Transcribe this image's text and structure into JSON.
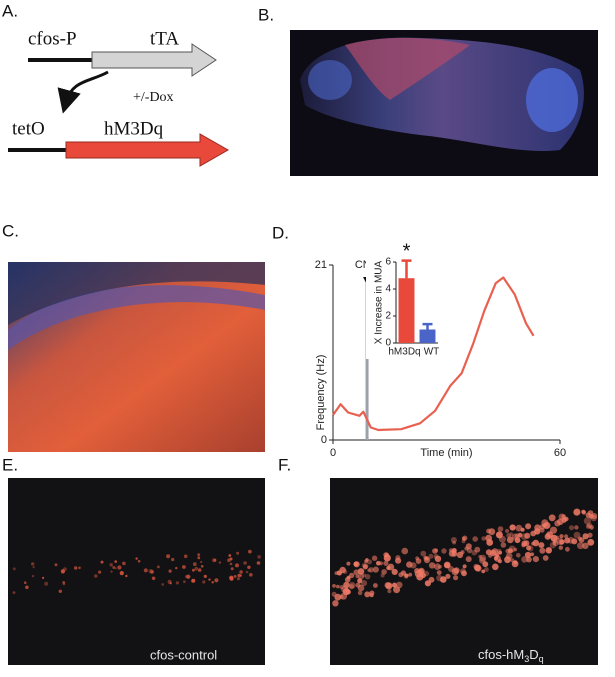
{
  "panel_labels": [
    "A.",
    "B.",
    "C.",
    "D.",
    "E.",
    "F."
  ],
  "diagram": {
    "promoter_1": "cfos-P",
    "gene_1": "tTA",
    "regulation": "+/-Dox",
    "promoter_2": "tetO",
    "gene_2": "hM3Dq"
  },
  "images": {
    "E_caption": "cfos-control",
    "F_caption": [
      "cfos-hM",
      "3",
      "D",
      "q"
    ]
  },
  "chart_data": [
    {
      "type": "line",
      "xlabel": "Time (min)",
      "ylabel": "Frequency (Hz)",
      "x": [
        0,
        2,
        4,
        7,
        8,
        10,
        12,
        18,
        23,
        27,
        31,
        34,
        37,
        40,
        43,
        45,
        48,
        51,
        53
      ],
      "series": [
        {
          "color": "#e8604f",
          "values": [
            3.0,
            4.3,
            3.3,
            2.9,
            3.4,
            1.5,
            1.2,
            1.3,
            2.0,
            3.5,
            6.5,
            8.0,
            11.5,
            15.5,
            18.8,
            19.5,
            17.5,
            14.0,
            12.5
          ]
        }
      ],
      "xlim": [
        0,
        60
      ],
      "xticks": [
        0,
        60
      ],
      "ylim": [
        0,
        21
      ],
      "yticks": [
        0,
        21
      ],
      "annotation": {
        "text": "CNO",
        "x": 9
      }
    },
    {
      "type": "bar",
      "ylabel": "X Increase in MUA",
      "categories": [
        "hM3Dq",
        "WT"
      ],
      "values": [
        4.8,
        1.0
      ],
      "errors": [
        1.3,
        0.4
      ],
      "colors": [
        "#e8493b",
        "#4a64c8"
      ],
      "ylim": [
        0,
        6
      ],
      "yticks": [
        0,
        2,
        4,
        6
      ],
      "annotation": "*"
    }
  ]
}
